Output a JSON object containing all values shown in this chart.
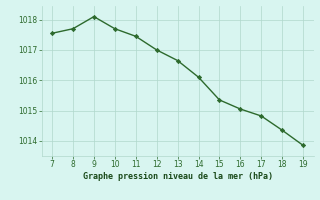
{
  "x": [
    7,
    8,
    9,
    10,
    11,
    12,
    13,
    14,
    15,
    16,
    17,
    18,
    19
  ],
  "y": [
    1017.55,
    1017.7,
    1018.1,
    1017.7,
    1017.45,
    1017.0,
    1016.65,
    1016.1,
    1015.35,
    1015.05,
    1014.82,
    1014.35,
    1013.85
  ],
  "line_color": "#2d6a2d",
  "marker": "D",
  "marker_size": 2.2,
  "bg_color": "#d8f5f0",
  "grid_color": "#b0d8cc",
  "xlabel": "Graphe pression niveau de la mer (hPa)",
  "xlabel_color": "#1a4a1a",
  "tick_color": "#2d6a2d",
  "ylim": [
    1013.5,
    1018.45
  ],
  "xlim": [
    6.5,
    19.5
  ],
  "yticks": [
    1014,
    1015,
    1016,
    1017,
    1018
  ],
  "xticks": [
    7,
    8,
    9,
    10,
    11,
    12,
    13,
    14,
    15,
    16,
    17,
    18,
    19
  ],
  "linewidth": 1.0
}
